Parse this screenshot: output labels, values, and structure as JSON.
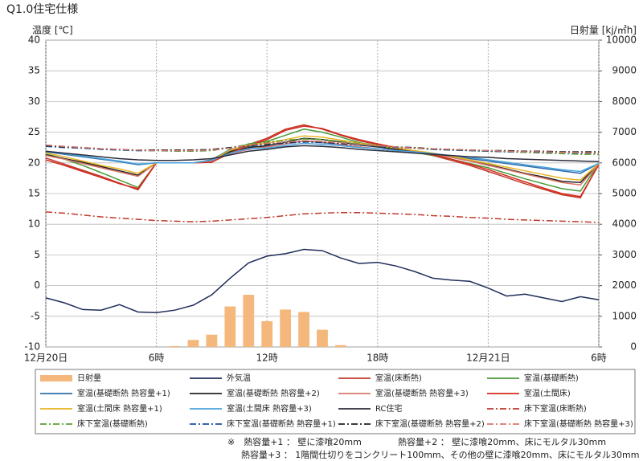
{
  "chart_data": {
    "type": "line",
    "title": "Q1.0住宅仕様",
    "y_label": "温度 [℃]",
    "y2_label": "日射量 [kj/㎡h]",
    "x": [
      0,
      1,
      2,
      3,
      4,
      5,
      6,
      7,
      8,
      9,
      10,
      11,
      12,
      13,
      14,
      15,
      16,
      17,
      18,
      19,
      20,
      21,
      22,
      23,
      24,
      25,
      26,
      27,
      28,
      29,
      30
    ],
    "xlim": [
      0,
      30
    ],
    "xticks": [
      {
        "value": 0,
        "label": "12月20日"
      },
      {
        "value": 6,
        "label": "6時"
      },
      {
        "value": 12,
        "label": "12時"
      },
      {
        "value": 18,
        "label": "18時"
      },
      {
        "value": 24,
        "label": "12月21日"
      },
      {
        "value": 30,
        "label": "6時"
      }
    ],
    "ylim": [
      -10,
      40
    ],
    "yticks": [
      -10,
      -5,
      0,
      5,
      10,
      15,
      20,
      25,
      30,
      35,
      40
    ],
    "y2lim": [
      0,
      10000
    ],
    "y2ticks": [
      0,
      1000,
      2000,
      3000,
      4000,
      5000,
      6000,
      7000,
      8000,
      9000,
      10000
    ],
    "grid": true,
    "series": [
      {
        "name": "日射量",
        "type": "bar",
        "axis": "y2",
        "color": "#f4b77c",
        "values": [
          0,
          0,
          0,
          0,
          0,
          0,
          0,
          30,
          230,
          400,
          1320,
          1700,
          840,
          1220,
          1140,
          560,
          60,
          0,
          0,
          0,
          0,
          0,
          0,
          0,
          0,
          0,
          0,
          0,
          0,
          0,
          0
        ]
      },
      {
        "name": "外気温",
        "color": "#1f2d5a",
        "values": [
          -2,
          -2.8,
          -3.9,
          -4,
          -3.1,
          -4.3,
          -4.4,
          -4,
          -3.2,
          -1.5,
          1.2,
          3.7,
          4.8,
          5.2,
          5.9,
          5.7,
          4.5,
          3.6,
          3.8,
          3.2,
          2.3,
          1.2,
          0.9,
          0.7,
          -0.4,
          -1.7,
          -1.4,
          -2,
          -2.6,
          -1.8,
          -2.3
        ]
      },
      {
        "name": "室温(床断熱)",
        "color": "#c0392b",
        "values": [
          20.8,
          19.8,
          18.8,
          17.8,
          16.7,
          15.6,
          20,
          20,
          20,
          20.1,
          21.8,
          23,
          24,
          25.5,
          26.2,
          25.5,
          24.5,
          23.6,
          23,
          22.4,
          21.8,
          21.2,
          20.4,
          19.6,
          18.6,
          17.6,
          16.6,
          15.7,
          14.8,
          14.3,
          19.8
        ]
      },
      {
        "name": "室温(基礎断熱)",
        "color": "#4a9a3a",
        "values": [
          21.5,
          20.6,
          19.6,
          18.4,
          17.2,
          16,
          20,
          20,
          20,
          20.3,
          22,
          23.1,
          23.5,
          24.5,
          25.5,
          25,
          24.2,
          23.3,
          22.8,
          22.2,
          21.7,
          21.2,
          20.6,
          19.9,
          19.2,
          18.3,
          17.4,
          16.6,
          15.8,
          15.4,
          19.9
        ]
      },
      {
        "name": "室温(基礎断熱 熱容量+1)",
        "color": "#2e6fa8",
        "values": [
          21.8,
          21.4,
          21,
          20.6,
          20.2,
          19.7,
          20,
          20,
          20,
          20.5,
          22.2,
          22.7,
          22.6,
          23.1,
          23.6,
          23.3,
          23,
          22.6,
          22.3,
          22,
          21.7,
          21.4,
          21.1,
          20.7,
          20.3,
          19.9,
          19.5,
          19.1,
          18.7,
          18.3,
          19.9
        ]
      },
      {
        "name": "室温(基礎断熱 熱容量+2)",
        "color": "#222222",
        "values": [
          21.3,
          20.7,
          20.1,
          19.4,
          18.7,
          18,
          20,
          20,
          20,
          20.3,
          21.8,
          22.5,
          22.8,
          23.4,
          24,
          23.8,
          23.4,
          22.9,
          22.6,
          22.2,
          21.8,
          21.4,
          20.9,
          20.3,
          19.7,
          19,
          18.3,
          17.7,
          17,
          16.8,
          19.9
        ]
      },
      {
        "name": "室温(基礎断熱 熱容量+3)",
        "color": "#d9776b",
        "values": [
          21.2,
          20.6,
          19.9,
          19.2,
          18.5,
          17.8,
          20,
          20,
          20,
          20.2,
          21.5,
          22.2,
          22.6,
          23.1,
          23.6,
          23.4,
          23,
          22.6,
          22.3,
          22,
          21.7,
          21.3,
          20.9,
          20.3,
          19.6,
          18.9,
          18.2,
          17.5,
          16.8,
          16.4,
          19.8
        ]
      },
      {
        "name": "室温(土間床)",
        "color": "#d62a1e",
        "values": [
          20.5,
          19.6,
          18.6,
          17.6,
          16.6,
          15.8,
          20,
          20,
          20,
          20.1,
          21.6,
          22.8,
          23.8,
          25.3,
          26,
          25.6,
          24.6,
          23.8,
          23.1,
          22.5,
          21.9,
          21.3,
          20.6,
          19.8,
          18.9,
          17.9,
          16.9,
          15.9,
          15,
          14.5,
          19.7
        ]
      },
      {
        "name": "室温(土間床 熱容量+1)",
        "color": "#e6b422",
        "values": [
          21.6,
          21,
          20.3,
          19.6,
          19,
          18.3,
          20,
          20,
          20,
          20.4,
          22.1,
          22.9,
          23.2,
          23.8,
          24.4,
          24.2,
          23.7,
          23.2,
          22.8,
          22.4,
          22,
          21.6,
          21.1,
          20.5,
          19.9,
          19.3,
          18.7,
          18.1,
          17.5,
          17.2,
          19.9
        ]
      },
      {
        "name": "室温(土間床 熱容量+3)",
        "color": "#4aa3df",
        "values": [
          21.9,
          21.5,
          21.1,
          20.7,
          20.3,
          19.8,
          20,
          20,
          20,
          20.4,
          21.6,
          22.3,
          22.4,
          22.8,
          23.2,
          23,
          22.8,
          22.5,
          22.3,
          22,
          21.8,
          21.5,
          21.2,
          20.9,
          20.5,
          20.1,
          19.7,
          19.3,
          18.9,
          18.6,
          19.9
        ]
      },
      {
        "name": "RC住宅",
        "color": "#2b2b3a",
        "values": [
          21.9,
          21.6,
          21.3,
          21,
          20.7,
          20.5,
          20.4,
          20.4,
          20.5,
          20.7,
          21.3,
          21.9,
          22.2,
          22.6,
          22.8,
          22.7,
          22.5,
          22.2,
          22,
          21.8,
          21.6,
          21.4,
          21.2,
          21,
          20.9,
          20.7,
          20.6,
          20.5,
          20.4,
          20.3,
          20.2
        ]
      },
      {
        "name": "床下室温(床断熱)",
        "color": "#c0392b",
        "dash": true,
        "values": [
          12,
          11.8,
          11.5,
          11.2,
          11,
          10.8,
          10.6,
          10.5,
          10.4,
          10.5,
          10.7,
          10.9,
          11.1,
          11.4,
          11.7,
          11.8,
          11.9,
          11.9,
          11.8,
          11.7,
          11.6,
          11.4,
          11.3,
          11.1,
          11,
          10.8,
          10.7,
          10.6,
          10.5,
          10.4,
          10.3
        ]
      },
      {
        "name": "床下室温(基礎断熱)",
        "color": "#5aa02c",
        "dash": true,
        "values": [
          22.8,
          22.6,
          22.4,
          22.2,
          22.1,
          22,
          22,
          21.9,
          21.9,
          22,
          22.5,
          23,
          23.4,
          23.7,
          23.9,
          23.8,
          23.5,
          23.1,
          22.8,
          22.6,
          22.4,
          22.2,
          22.1,
          22,
          21.9,
          21.8,
          21.7,
          21.6,
          21.5,
          21.4,
          21.4
        ]
      },
      {
        "name": "床下室温(基礎断熱 熱容量+1)",
        "color": "#1f4fa0",
        "dash": true,
        "values": [
          22.7,
          22.5,
          22.4,
          22.2,
          22.1,
          22,
          22,
          22,
          22,
          22.1,
          22.4,
          22.8,
          23,
          23.2,
          23.4,
          23.3,
          23.1,
          22.9,
          22.7,
          22.5,
          22.4,
          22.2,
          22.1,
          22,
          21.9,
          21.8,
          21.8,
          21.7,
          21.7,
          21.6,
          21.6
        ]
      },
      {
        "name": "床下室温(基礎断熱 熱容量+2)",
        "color": "#222222",
        "dash": true,
        "values": [
          22.8,
          22.6,
          22.5,
          22.3,
          22.2,
          22.1,
          22.1,
          22.1,
          22.1,
          22.2,
          22.5,
          22.8,
          23.1,
          23.3,
          23.5,
          23.4,
          23.2,
          23,
          22.8,
          22.6,
          22.5,
          22.3,
          22.2,
          22.1,
          22,
          22,
          21.9,
          21.9,
          21.8,
          21.8,
          21.8
        ]
      },
      {
        "name": "床下室温(基礎断熱 熱容量+3)",
        "color": "#d9776b",
        "dash": true,
        "values": [
          22.9,
          22.7,
          22.5,
          22.3,
          22.2,
          22.1,
          22,
          22,
          22,
          22.1,
          22.4,
          22.9,
          23.2,
          23.4,
          23.6,
          23.5,
          23.3,
          23,
          22.8,
          22.6,
          22.4,
          22.3,
          22.2,
          22.1,
          22,
          21.9,
          21.8,
          21.8,
          21.7,
          21.7,
          21.6
        ]
      }
    ],
    "notes": [
      "※　熱容量+1 ： 壁に漆喰20mm",
      "熱容量+2 ： 壁に漆喰20mm、床にモルタル30mm",
      "熱容量+3 ： 1階間仕切りをコンクリート100mm、その他の壁に漆喰20mm、床にモルタル30mm"
    ]
  }
}
